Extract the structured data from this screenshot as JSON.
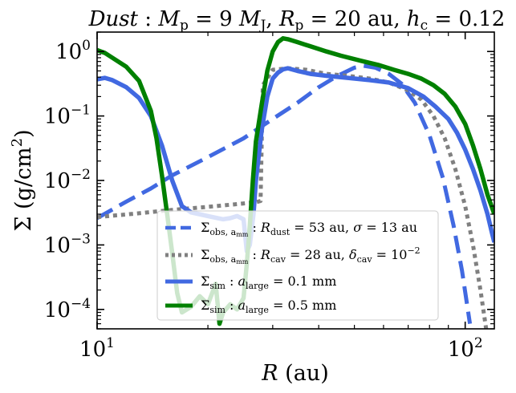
{
  "chart_data": {
    "type": "line",
    "title": "Dust : M_p = 9 M_J, R_p = 20 au, h_c = 0.12",
    "title_parts": {
      "lead": "Dust",
      "mass": "M",
      "mass_sub": "p",
      "mass_eq": " = 9 ",
      "mass_unit": "M",
      "mass_unit_sub": "J",
      "radius": "R",
      "radius_sub": "p",
      "radius_eq": " = 20 au, ",
      "hc": "h",
      "hc_sub": "c",
      "hc_eq": " = 0.12"
    },
    "xlabel": "R (au)",
    "ylabel": "Σ (g/cm²)",
    "xscale": "log",
    "yscale": "log",
    "xlim": [
      10,
      120
    ],
    "ylim": [
      5e-05,
      2
    ],
    "x_ticks": [
      {
        "value": 10,
        "label": "10",
        "exp": "1"
      },
      {
        "value": 100,
        "label": "10",
        "exp": "2"
      }
    ],
    "y_ticks": [
      {
        "value": 1,
        "label": "10",
        "exp": "0"
      },
      {
        "value": 0.1,
        "label": "10",
        "exp": "−1"
      },
      {
        "value": 0.01,
        "label": "10",
        "exp": "−2"
      },
      {
        "value": 0.001,
        "label": "10",
        "exp": "−3"
      },
      {
        "value": 0.0001,
        "label": "10",
        "exp": "−4"
      }
    ],
    "legend_position": "lower-center",
    "legend": [
      {
        "series": "obs_dust",
        "text": "Σ_obs, a_mm : R_dust = 53 au, σ = 13 au"
      },
      {
        "series": "obs_cav",
        "text": "Σ_obs, a_mm : R_cav = 28 au, δ_cav = 10⁻²"
      },
      {
        "series": "sim_01",
        "text": "Σ_sim : a_large = 0.1 mm"
      },
      {
        "series": "sim_05",
        "text": "Σ_sim : a_large = 0.5 mm"
      }
    ],
    "series": [
      {
        "id": "obs_dust",
        "name": "Σ_obs, a_mm : R_dust = 53 au, σ = 13 au",
        "color": "#4169E1",
        "style": "dashed",
        "points": [
          [
            10,
            0.0026
          ],
          [
            12,
            0.0047
          ],
          [
            14,
            0.0075
          ],
          [
            16,
            0.012
          ],
          [
            20,
            0.023
          ],
          [
            25,
            0.045
          ],
          [
            30,
            0.09
          ],
          [
            35,
            0.16
          ],
          [
            40,
            0.28
          ],
          [
            45,
            0.42
          ],
          [
            50,
            0.56
          ],
          [
            53,
            0.6
          ],
          [
            57,
            0.56
          ],
          [
            62,
            0.45
          ],
          [
            67,
            0.32
          ],
          [
            73,
            0.16
          ],
          [
            80,
            0.05
          ],
          [
            87,
            0.011
          ],
          [
            93,
            0.002
          ],
          [
            98,
            0.0004
          ],
          [
            103,
            6e-05
          ]
        ]
      },
      {
        "id": "obs_cav",
        "name": "Σ_obs, a_mm : R_cav = 28 au, δ_cav = 10⁻²",
        "color": "#808080",
        "style": "dotted",
        "points": [
          [
            10,
            0.0027
          ],
          [
            13,
            0.0031
          ],
          [
            16,
            0.0035
          ],
          [
            20,
            0.0039
          ],
          [
            24,
            0.0043
          ],
          [
            27,
            0.0046
          ],
          [
            27.8,
            0.0048
          ],
          [
            28.2,
            0.3
          ],
          [
            30,
            0.52
          ],
          [
            33,
            0.55
          ],
          [
            37,
            0.52
          ],
          [
            42,
            0.45
          ],
          [
            48,
            0.42
          ],
          [
            55,
            0.38
          ],
          [
            62,
            0.33
          ],
          [
            70,
            0.25
          ],
          [
            76,
            0.18
          ],
          [
            82,
            0.1
          ],
          [
            88,
            0.045
          ],
          [
            94,
            0.015
          ],
          [
            100,
            0.004
          ],
          [
            105,
            0.001
          ],
          [
            110,
            0.0002
          ],
          [
            114,
            5e-05
          ]
        ]
      },
      {
        "id": "sim_01",
        "name": "Σ_sim : a_large = 0.1 mm",
        "color": "#4169E1",
        "style": "solid",
        "points": [
          [
            10,
            0.37
          ],
          [
            10.5,
            0.39
          ],
          [
            11,
            0.36
          ],
          [
            12,
            0.28
          ],
          [
            13,
            0.19
          ],
          [
            14,
            0.1
          ],
          [
            15,
            0.035
          ],
          [
            16,
            0.01
          ],
          [
            17,
            0.004
          ],
          [
            18,
            0.0032
          ],
          [
            20,
            0.0028
          ],
          [
            22,
            0.0025
          ],
          [
            23,
            0.0026
          ],
          [
            24,
            0.0028
          ],
          [
            25,
            0.0025
          ],
          [
            25.5,
            0.0008
          ],
          [
            26,
            0.001
          ],
          [
            26.6,
            0.003
          ],
          [
            27,
            0.01
          ],
          [
            28,
            0.06
          ],
          [
            29,
            0.2
          ],
          [
            30,
            0.38
          ],
          [
            31,
            0.47
          ],
          [
            32,
            0.53
          ],
          [
            33,
            0.55
          ],
          [
            35,
            0.5
          ],
          [
            38,
            0.45
          ],
          [
            42,
            0.42
          ],
          [
            48,
            0.39
          ],
          [
            55,
            0.36
          ],
          [
            62,
            0.33
          ],
          [
            70,
            0.27
          ],
          [
            77,
            0.2
          ],
          [
            83,
            0.14
          ],
          [
            90,
            0.09
          ],
          [
            95,
            0.055
          ],
          [
            100,
            0.03
          ],
          [
            105,
            0.015
          ],
          [
            110,
            0.007
          ],
          [
            115,
            0.003
          ],
          [
            118,
            0.0016
          ],
          [
            120,
            0.0011
          ]
        ]
      },
      {
        "id": "sim_05",
        "name": "Σ_sim : a_large = 0.5 mm",
        "color": "#008000",
        "style": "solid",
        "points": [
          [
            10,
            1.05
          ],
          [
            10.5,
            0.95
          ],
          [
            11,
            0.8
          ],
          [
            12,
            0.58
          ],
          [
            13,
            0.35
          ],
          [
            14,
            0.12
          ],
          [
            14.5,
            0.045
          ],
          [
            15,
            0.012
          ],
          [
            15.5,
            0.003
          ],
          [
            16,
            0.00075
          ],
          [
            16.5,
            0.00018
          ],
          [
            17,
            9e-05
          ],
          [
            18,
            0.00011
          ],
          [
            19,
            0.00016
          ],
          [
            20,
            0.00012
          ],
          [
            21,
            0.00025
          ],
          [
            21.5,
            6e-05
          ],
          [
            22,
            9e-05
          ],
          [
            23,
            0.00012
          ],
          [
            24,
            0.0001
          ],
          [
            25,
            0.00015
          ],
          [
            25.5,
            0.0005
          ],
          [
            26,
            0.002
          ],
          [
            26.5,
            0.01
          ],
          [
            27,
            0.04
          ],
          [
            28,
            0.15
          ],
          [
            29,
            0.5
          ],
          [
            30,
            1.0
          ],
          [
            31,
            1.4
          ],
          [
            32,
            1.6
          ],
          [
            33,
            1.55
          ],
          [
            35,
            1.4
          ],
          [
            38,
            1.2
          ],
          [
            42,
            1.0
          ],
          [
            46,
            0.86
          ],
          [
            52,
            0.72
          ],
          [
            58,
            0.62
          ],
          [
            64,
            0.52
          ],
          [
            70,
            0.45
          ],
          [
            76,
            0.38
          ],
          [
            82,
            0.3
          ],
          [
            88,
            0.22
          ],
          [
            94,
            0.14
          ],
          [
            100,
            0.075
          ],
          [
            105,
            0.035
          ],
          [
            110,
            0.015
          ],
          [
            115,
            0.006
          ],
          [
            120,
            0.003
          ]
        ]
      }
    ]
  }
}
